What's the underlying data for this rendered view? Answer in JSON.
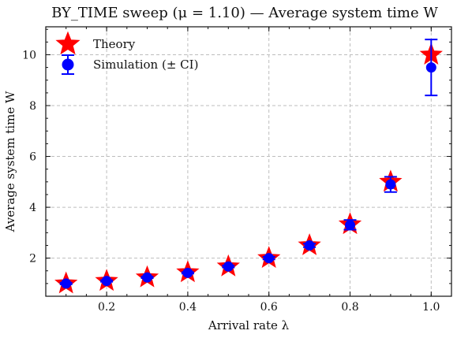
{
  "chart_data": {
    "type": "scatter",
    "title": "BY_TIME sweep (μ = 1.10) — Average system time W",
    "xlabel": "Arrival rate λ",
    "ylabel": "Average system time W",
    "xlim": [
      0.05,
      1.05
    ],
    "ylim": [
      0.5,
      11.1
    ],
    "xticks": [
      0.2,
      0.4,
      0.6,
      0.8,
      1.0
    ],
    "xtick_labels": [
      "0.2",
      "0.4",
      "0.6",
      "0.8",
      "1.0"
    ],
    "yticks": [
      2,
      4,
      6,
      8,
      10
    ],
    "ytick_labels": [
      "2",
      "4",
      "6",
      "8",
      "10"
    ],
    "grid": true,
    "legend_position": "top-left",
    "series": [
      {
        "name": "Theory",
        "marker": "star",
        "color": "#ff0000",
        "x": [
          0.1,
          0.2,
          0.3,
          0.4,
          0.5,
          0.6,
          0.7,
          0.8,
          0.9,
          1.0
        ],
        "y": [
          1.0,
          1.1,
          1.24,
          1.44,
          1.67,
          2.0,
          2.5,
          3.33,
          5.0,
          10.0
        ]
      },
      {
        "name": "Simulation (± CI)",
        "marker": "circle",
        "color": "#0000ff",
        "x": [
          0.1,
          0.2,
          0.3,
          0.4,
          0.5,
          0.6,
          0.7,
          0.8,
          0.9,
          1.0
        ],
        "y": [
          1.0,
          1.1,
          1.24,
          1.42,
          1.67,
          2.0,
          2.5,
          3.3,
          4.9,
          9.5
        ],
        "ci_low": [
          0.97,
          1.07,
          1.21,
          1.39,
          1.63,
          1.95,
          2.43,
          3.12,
          4.6,
          8.4
        ],
        "ci_high": [
          1.03,
          1.13,
          1.27,
          1.45,
          1.71,
          2.05,
          2.57,
          3.5,
          5.2,
          10.6
        ]
      }
    ]
  }
}
